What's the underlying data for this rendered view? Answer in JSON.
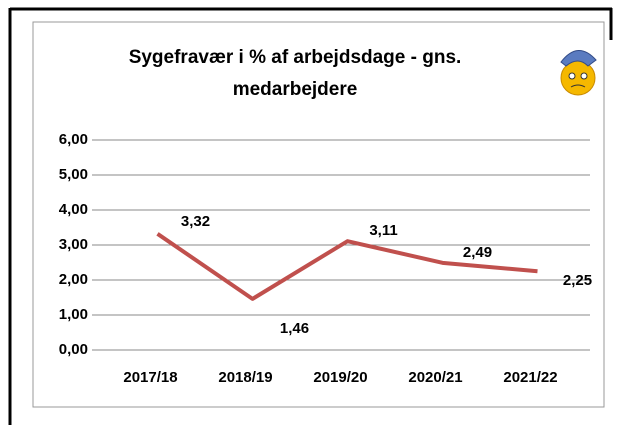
{
  "chart_data": {
    "type": "line",
    "title": "Sygefravær i % af arbejdsdage - gns. medarbejdere",
    "categories": [
      "2017/18",
      "2018/19",
      "2019/20",
      "2020/21",
      "2021/22"
    ],
    "values": [
      3.32,
      1.46,
      3.11,
      2.49,
      2.25
    ],
    "value_labels": [
      "3,32",
      "1,46",
      "3,11",
      "2,49",
      "2,25"
    ],
    "color": "#c0504d",
    "ylim": [
      0,
      6
    ],
    "yticks": [
      {
        "value": 0,
        "label": "0,00"
      },
      {
        "value": 1,
        "label": "1,00"
      },
      {
        "value": 2,
        "label": "2,00"
      },
      {
        "value": 3,
        "label": "3,00"
      },
      {
        "value": 4,
        "label": "4,00"
      },
      {
        "value": 5,
        "label": "5,00"
      },
      {
        "value": 6,
        "label": "6,00"
      }
    ],
    "grid": true
  }
}
